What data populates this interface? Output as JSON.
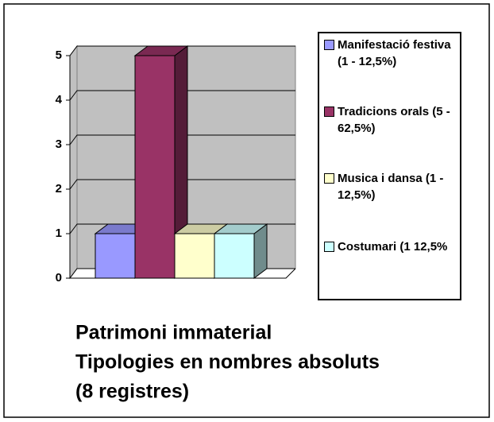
{
  "chart_data": {
    "type": "bar3d",
    "title_lines": [
      "Patrimoni immaterial",
      "Tipologies en nombres absoluts",
      "(8 registres)"
    ],
    "series": [
      {
        "name": "Manifestació festiva (1 - 12,5%)",
        "color": "#9999ff",
        "values": [
          1
        ]
      },
      {
        "name": "Tradicions orals (5 - 62,5%)",
        "color": "#993366",
        "values": [
          5
        ]
      },
      {
        "name": "Musica i dansa (1 - 12,5%)",
        "color": "#ffffcc",
        "values": [
          1
        ]
      },
      {
        "name": "Costumari (1 12,5%",
        "color": "#ccffff",
        "values": [
          1
        ]
      }
    ],
    "ylim": [
      0,
      5
    ],
    "yticks": [
      0,
      1,
      2,
      3,
      4,
      5
    ],
    "grid": true,
    "legend": "right"
  }
}
